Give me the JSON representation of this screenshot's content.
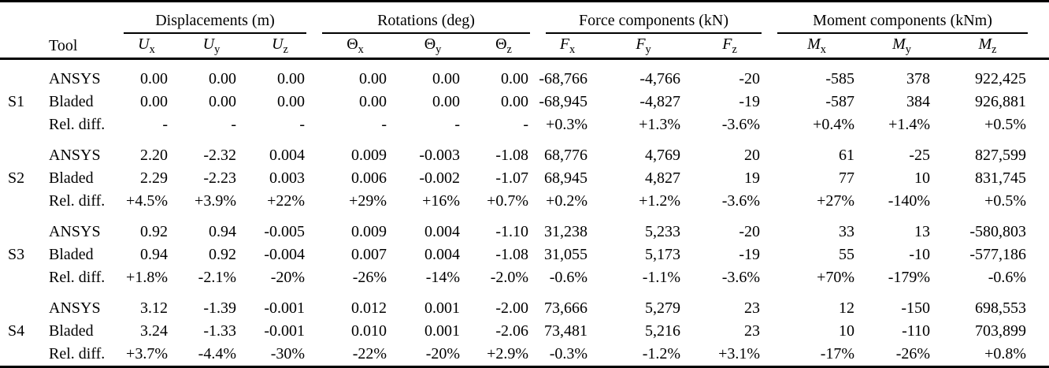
{
  "colors": {
    "text": "#000000",
    "background": "#ffffff",
    "rule": "#000000"
  },
  "table": {
    "tool_header": "Tool",
    "groups": [
      {
        "label": "Displacements (m)"
      },
      {
        "label": "Rotations (deg)"
      },
      {
        "label": "Force components (kN)"
      },
      {
        "label": "Moment components (kNm)"
      }
    ],
    "columns": [
      {
        "base": "U",
        "sub": "x"
      },
      {
        "base": "U",
        "sub": "y"
      },
      {
        "base": "U",
        "sub": "z"
      },
      {
        "base": "Θ",
        "sub": "x"
      },
      {
        "base": "Θ",
        "sub": "y"
      },
      {
        "base": "Θ",
        "sub": "z"
      },
      {
        "base": "F",
        "sub": "x"
      },
      {
        "base": "F",
        "sub": "y"
      },
      {
        "base": "F",
        "sub": "z"
      },
      {
        "base": "M",
        "sub": "x"
      },
      {
        "base": "M",
        "sub": "y"
      },
      {
        "base": "M",
        "sub": "z"
      }
    ],
    "sections": [
      {
        "label": "S1",
        "rows": [
          {
            "tool": "ANSYS",
            "values": [
              "0.00",
              "0.00",
              "0.00",
              "0.00",
              "0.00",
              "0.00",
              "-68,766",
              "-4,766",
              "-20",
              "-585",
              "378",
              "922,425"
            ]
          },
          {
            "tool": "Bladed",
            "values": [
              "0.00",
              "0.00",
              "0.00",
              "0.00",
              "0.00",
              "0.00",
              "-68,945",
              "-4,827",
              "-19",
              "-587",
              "384",
              "926,881"
            ]
          },
          {
            "tool": "Rel. diff.",
            "values": [
              "-",
              "-",
              "-",
              "-",
              "-",
              "-",
              "+0.3%",
              "+1.3%",
              "-3.6%",
              "+0.4%",
              "+1.4%",
              "+0.5%"
            ]
          }
        ]
      },
      {
        "label": "S2",
        "rows": [
          {
            "tool": "ANSYS",
            "values": [
              "2.20",
              "-2.32",
              "0.004",
              "0.009",
              "-0.003",
              "-1.08",
              "68,776",
              "4,769",
              "20",
              "61",
              "-25",
              "827,599"
            ]
          },
          {
            "tool": "Bladed",
            "values": [
              "2.29",
              "-2.23",
              "0.003",
              "0.006",
              "-0.002",
              "-1.07",
              "68,945",
              "4,827",
              "19",
              "77",
              "10",
              "831,745"
            ]
          },
          {
            "tool": "Rel. diff.",
            "values": [
              "+4.5%",
              "+3.9%",
              "+22%",
              "+29%",
              "+16%",
              "+0.7%",
              "+0.2%",
              "+1.2%",
              "-3.6%",
              "+27%",
              "-140%",
              "+0.5%"
            ]
          }
        ]
      },
      {
        "label": "S3",
        "rows": [
          {
            "tool": "ANSYS",
            "values": [
              "0.92",
              "0.94",
              "-0.005",
              "0.009",
              "0.004",
              "-1.10",
              "31,238",
              "5,233",
              "-20",
              "33",
              "13",
              "-580,803"
            ]
          },
          {
            "tool": "Bladed",
            "values": [
              "0.94",
              "0.92",
              "-0.004",
              "0.007",
              "0.004",
              "-1.08",
              "31,055",
              "5,173",
              "-19",
              "55",
              "-10",
              "-577,186"
            ]
          },
          {
            "tool": "Rel. diff.",
            "values": [
              "+1.8%",
              "-2.1%",
              "-20%",
              "-26%",
              "-14%",
              "-2.0%",
              "-0.6%",
              "-1.1%",
              "-3.6%",
              "+70%",
              "-179%",
              "-0.6%"
            ]
          }
        ]
      },
      {
        "label": "S4",
        "rows": [
          {
            "tool": "ANSYS",
            "values": [
              "3.12",
              "-1.39",
              "-0.001",
              "0.012",
              "0.001",
              "-2.00",
              "73,666",
              "5,279",
              "23",
              "12",
              "-150",
              "698,553"
            ]
          },
          {
            "tool": "Bladed",
            "values": [
              "3.24",
              "-1.33",
              "-0.001",
              "0.010",
              "0.001",
              "-2.06",
              "73,481",
              "5,216",
              "23",
              "10",
              "-110",
              "703,899"
            ]
          },
          {
            "tool": "Rel. diff.",
            "values": [
              "+3.7%",
              "-4.4%",
              "-30%",
              "-22%",
              "-20%",
              "+2.9%",
              "-0.3%",
              "-1.2%",
              "+3.1%",
              "-17%",
              "-26%",
              "+0.8%"
            ]
          }
        ]
      }
    ]
  }
}
